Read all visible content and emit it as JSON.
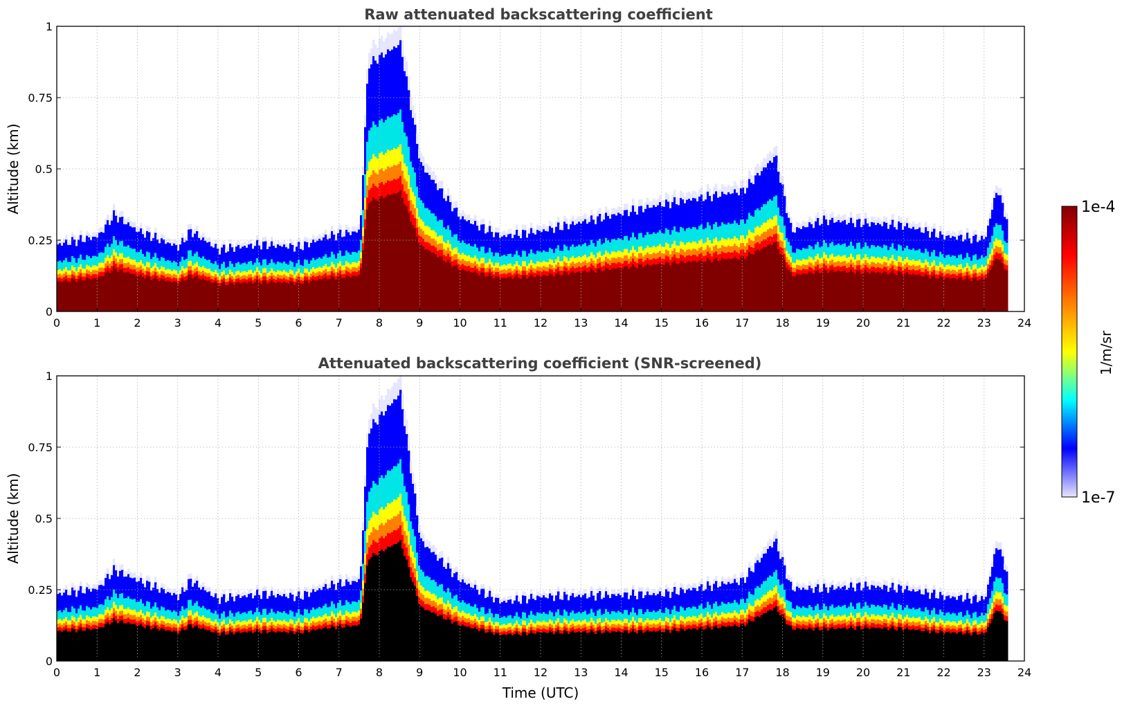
{
  "colors": {
    "white": "#ffffff",
    "pale_lilac": "#e6e6ff",
    "blue": "#0000ff",
    "cyan": "#00e5e5",
    "green": "#66ff66",
    "yellow": "#ffff00",
    "orange": "#ff8000",
    "red": "#ff0000",
    "dark_red": "#800000",
    "black": "#000000",
    "grid": "#b0b0b0"
  },
  "colorbar": {
    "max_label": "1e-4",
    "min_label": "1e-7",
    "unit_label": "1/m/sr",
    "stops": [
      "#e6e6ff",
      "#0000ff",
      "#00ffff",
      "#ffff00",
      "#ff8000",
      "#ff0000",
      "#800000"
    ]
  },
  "chart_data": [
    {
      "type": "heatmap",
      "title": "Raw attenuated backscattering coefficient",
      "xlabel": "",
      "ylabel": "Altitude (km)",
      "xlim": [
        0,
        24
      ],
      "ylim": [
        0,
        1
      ],
      "xticks": [
        "0",
        "1",
        "2",
        "3",
        "4",
        "5",
        "6",
        "7",
        "8",
        "9",
        "10",
        "11",
        "12",
        "13",
        "14",
        "15",
        "16",
        "17",
        "18",
        "19",
        "20",
        "21",
        "22",
        "23",
        "24"
      ],
      "yticks": [
        "0",
        "0.25",
        "0.5",
        "0.75",
        "1"
      ],
      "grid": true,
      "data_end_hour": 23.55,
      "approx_top_of_signal_km": {
        "hours": [
          0,
          1,
          1.4,
          2,
          3,
          3.3,
          4,
          5,
          6,
          6.7,
          7.5,
          7.7,
          8.5,
          9,
          10,
          11,
          12,
          15,
          17,
          17.8,
          18.2,
          19,
          20,
          21,
          22,
          23,
          23.3,
          23.55
        ],
        "top_km": [
          0.25,
          0.28,
          0.36,
          0.3,
          0.24,
          0.3,
          0.23,
          0.25,
          0.24,
          0.28,
          0.3,
          0.92,
          1.0,
          0.55,
          0.35,
          0.28,
          0.3,
          0.4,
          0.45,
          0.58,
          0.3,
          0.34,
          0.33,
          0.32,
          0.28,
          0.27,
          0.46,
          0.34
        ]
      }
    },
    {
      "type": "heatmap",
      "title": "Attenuated backscattering coefficient (SNR-screened)",
      "xlabel": "Time (UTC)",
      "ylabel": "Altitude (km)",
      "xlim": [
        0,
        24
      ],
      "ylim": [
        0,
        1
      ],
      "xticks": [
        "0",
        "1",
        "2",
        "3",
        "4",
        "5",
        "6",
        "7",
        "8",
        "9",
        "10",
        "11",
        "12",
        "13",
        "14",
        "15",
        "16",
        "17",
        "18",
        "19",
        "20",
        "21",
        "22",
        "23",
        "24"
      ],
      "yticks": [
        "0",
        "0.25",
        "0.5",
        "0.75",
        "1"
      ],
      "grid": true,
      "data_end_hour": 23.55,
      "screened_fill": "black",
      "approx_top_of_signal_km": {
        "hours": [
          0,
          1,
          1.4,
          2,
          3,
          3.3,
          4,
          5,
          6,
          6.7,
          7.5,
          7.7,
          8.5,
          9,
          10,
          11,
          12,
          15,
          17,
          17.8,
          18.2,
          19,
          20,
          21,
          22,
          23,
          23.3,
          23.55
        ],
        "top_km": [
          0.25,
          0.27,
          0.34,
          0.3,
          0.24,
          0.3,
          0.23,
          0.25,
          0.24,
          0.28,
          0.3,
          0.86,
          1.0,
          0.45,
          0.3,
          0.22,
          0.24,
          0.25,
          0.3,
          0.45,
          0.27,
          0.27,
          0.28,
          0.27,
          0.24,
          0.23,
          0.44,
          0.33
        ]
      }
    }
  ]
}
